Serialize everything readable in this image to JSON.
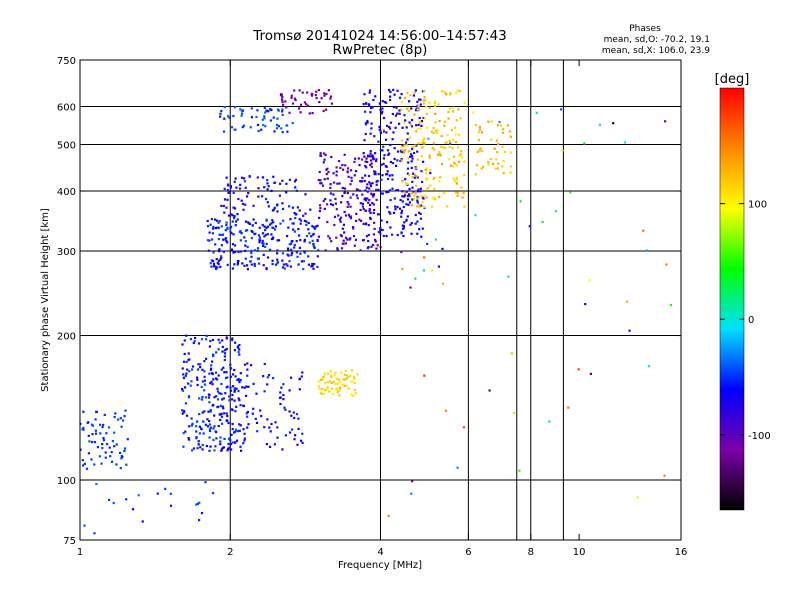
{
  "chart_data": {
    "type": "scatter",
    "title": "Tromsø 20141024 14:56:00–14:57:43",
    "subtitle": "RwPretec (8p)",
    "stats_header": "Phases",
    "stats_lines": [
      "mean, sd,O: -70.2, 19.1",
      "mean, sd,X: 106.0, 23.9"
    ],
    "xlabel": "Frequency [MHz]",
    "ylabel": "Stationary phase Virtual Height [km]",
    "xscale": "log",
    "yscale": "log",
    "xlim": [
      1,
      16
    ],
    "ylim": [
      75,
      750
    ],
    "xticks": [
      1,
      2,
      4,
      6,
      8,
      10,
      16
    ],
    "xtick_labels": [
      "1",
      "2",
      "4",
      "6",
      "8",
      "10",
      "16"
    ],
    "xgrid": [
      2,
      4,
      6,
      7.5,
      8,
      9.3
    ],
    "yticks": [
      75,
      100,
      200,
      300,
      400,
      500,
      600,
      750
    ],
    "ytick_labels": [
      "75",
      "100",
      "200",
      "300",
      "400",
      "500",
      "600",
      "750"
    ],
    "ygrid": [
      100,
      200,
      300,
      400,
      500,
      600
    ],
    "grid": true,
    "colorbar": {
      "label": "[deg]",
      "range": [
        -165,
        200
      ],
      "ticks": [
        100,
        0,
        -100
      ],
      "tick_labels": [
        "100",
        "0",
        "-100"
      ],
      "colormap": [
        "#000000",
        "#7a00a8",
        "#0000ff",
        "#00e0ff",
        "#00ff00",
        "#ffff00",
        "#ff8800",
        "#ff0000"
      ]
    },
    "clusters": [
      {
        "x": [
          1.0,
          1.25
        ],
        "y": [
          105,
          140
        ],
        "phase": [
          -55,
          -40
        ],
        "n": 70
      },
      {
        "x": [
          1.6,
          2.1
        ],
        "y": [
          115,
          200
        ],
        "phase": [
          -75,
          -40
        ],
        "n": 230
      },
      {
        "x": [
          1.8,
          2.8
        ],
        "y": [
          115,
          175
        ],
        "phase": [
          -80,
          -45
        ],
        "n": 130
      },
      {
        "x": [
          1.8,
          3.0
        ],
        "y": [
          275,
          350
        ],
        "phase": [
          -75,
          -40
        ],
        "n": 260
      },
      {
        "x": [
          1.9,
          2.9
        ],
        "y": [
          350,
          430
        ],
        "phase": [
          -90,
          -45
        ],
        "n": 90
      },
      {
        "x": [
          1.9,
          2.7
        ],
        "y": [
          530,
          600
        ],
        "phase": [
          -60,
          -35
        ],
        "n": 60
      },
      {
        "x": [
          2.5,
          3.2
        ],
        "y": [
          580,
          650
        ],
        "phase": [
          -120,
          -95
        ],
        "n": 45
      },
      {
        "x": [
          3.0,
          4.0
        ],
        "y": [
          300,
          480
        ],
        "phase": [
          -110,
          -70
        ],
        "n": 200
      },
      {
        "x": [
          3.7,
          4.9
        ],
        "y": [
          320,
          650
        ],
        "phase": [
          -85,
          -50
        ],
        "n": 280
      },
      {
        "x": [
          4.4,
          5.9
        ],
        "y": [
          370,
          650
        ],
        "phase": [
          100,
          140
        ],
        "n": 190
      },
      {
        "x": [
          3.0,
          3.6
        ],
        "y": [
          150,
          170
        ],
        "phase": [
          95,
          130
        ],
        "n": 70
      },
      {
        "x": [
          6.2,
          7.3
        ],
        "y": [
          430,
          560
        ],
        "phase": [
          110,
          140
        ],
        "n": 45
      },
      {
        "x": [
          1.0,
          2.0
        ],
        "y": [
          76,
          100
        ],
        "phase": [
          -60,
          -30
        ],
        "n": 20
      },
      {
        "x": [
          4.0,
          16.0
        ],
        "y": [
          80,
          650
        ],
        "phase": [
          -160,
          180
        ],
        "n": 60
      }
    ]
  }
}
